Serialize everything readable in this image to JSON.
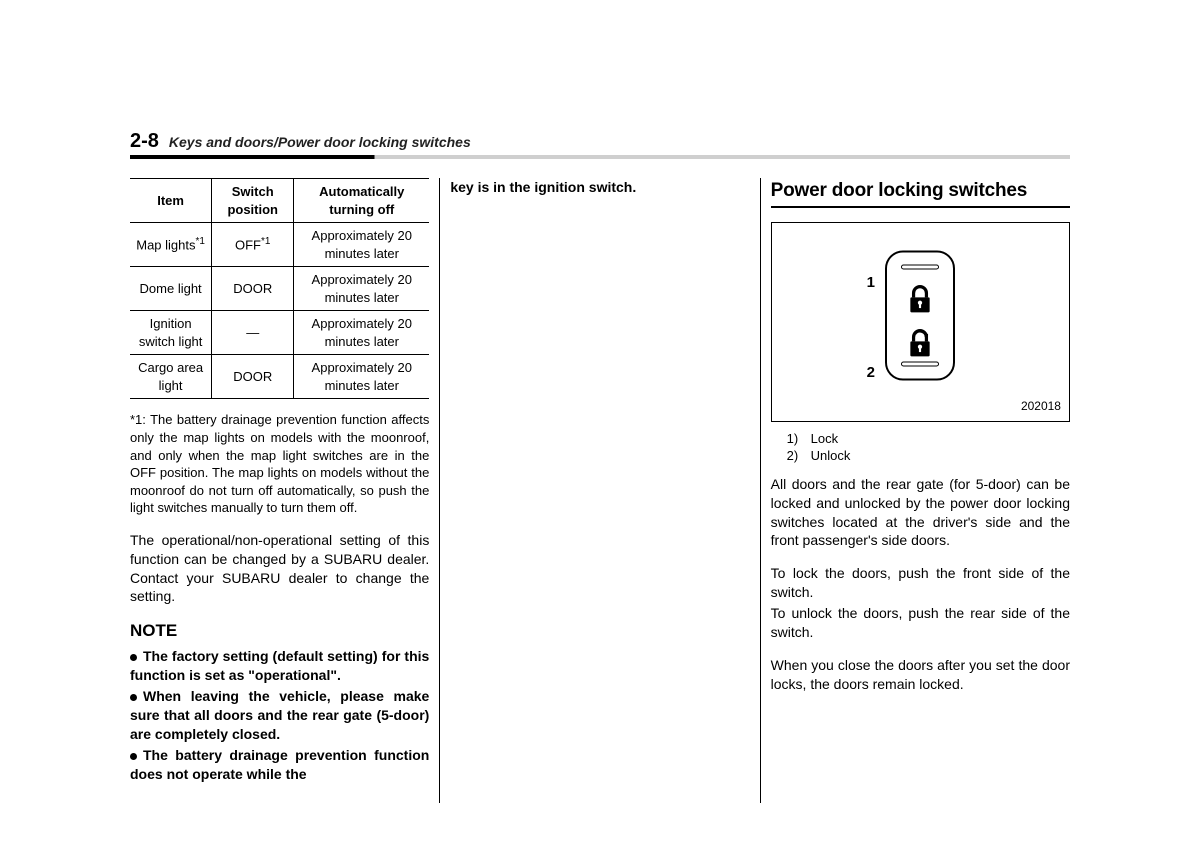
{
  "header": {
    "page_number": "2-8",
    "path": "Keys and doors/Power door locking switches"
  },
  "table": {
    "columns": [
      "Item",
      "Switch position",
      "Automatically turning off"
    ],
    "rows": [
      {
        "item": "Map lights",
        "item_sup": "*1",
        "pos": "OFF",
        "pos_sup": "*1",
        "off": "Approximately 20 minutes later"
      },
      {
        "item": "Dome light",
        "item_sup": "",
        "pos": "DOOR",
        "pos_sup": "",
        "off": "Approximately 20 minutes later"
      },
      {
        "item": "Ignition switch light",
        "item_sup": "",
        "pos": "—",
        "pos_sup": "",
        "off": "Approximately 20 minutes later"
      },
      {
        "item": "Cargo area light",
        "item_sup": "",
        "pos": "DOOR",
        "pos_sup": "",
        "off": "Approximately 20 minutes later"
      }
    ]
  },
  "footnote": "*1: The battery drainage prevention function affects only the map lights on models with the moonroof, and only when the map light switches are in the OFF position. The map lights on models without the moonroof do not turn off automatically, so push the light switches manually to turn them off.",
  "para_dealer": "The operational/non-operational setting of this function can be changed by a SUBARU dealer. Contact your SUBARU dealer to change the setting.",
  "note": {
    "heading": "NOTE",
    "items": [
      "The factory setting (default setting) for this function is set as \"operational\".",
      "When leaving the vehicle, please make sure that all doors and the rear gate (5-door) are completely closed.",
      "The battery drainage prevention function does not operate while the"
    ]
  },
  "col2_top": "key is in the ignition switch.",
  "section_title": "Power door locking switches",
  "figure": {
    "label1": "1",
    "label2": "2",
    "number": "202018"
  },
  "legend": [
    {
      "n": "1)",
      "t": "Lock"
    },
    {
      "n": "2)",
      "t": "Unlock"
    }
  ],
  "paras3": [
    "All doors and the rear gate (for 5-door) can be locked and unlocked by the power door locking switches located at the driver's side and the front passenger's side doors.",
    "To lock the doors, push the front side of the switch.",
    "To unlock the doors, push the rear side of the switch.",
    "When you close the doors after you set the door locks, the doors remain locked."
  ]
}
